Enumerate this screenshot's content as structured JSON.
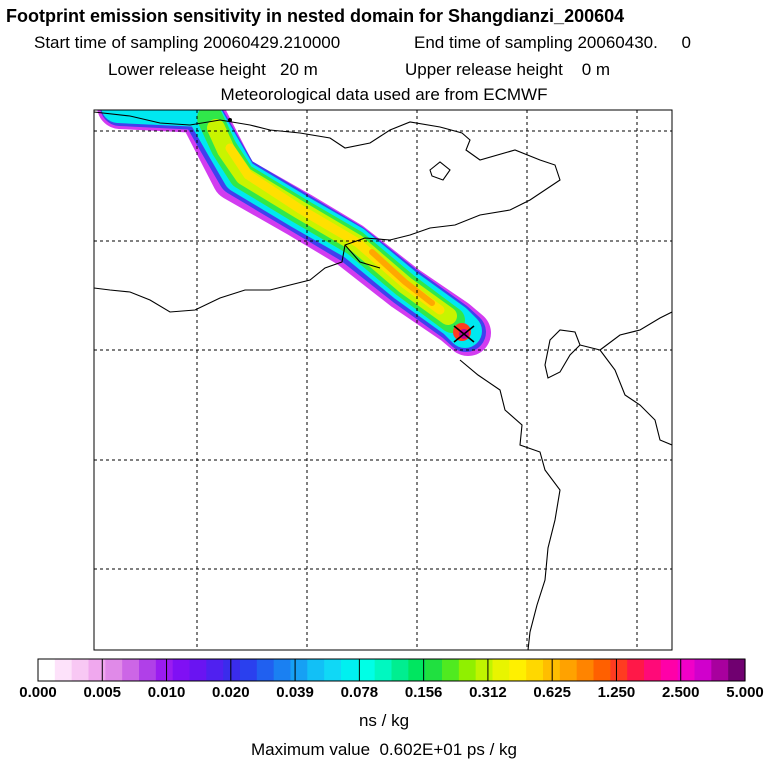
{
  "header": {
    "title": "Footprint emission sensitivity in nested domain for Shangdianzi_200604",
    "start_time": "Start time of sampling 20060429.210000",
    "end_time": "End time of sampling 20060430.     0",
    "lower_release": "Lower release height   20 m",
    "upper_release": "Upper release height    0 m",
    "met_data": "Meteorological data used are from ECMWF"
  },
  "colorbar": {
    "tick_labels": [
      "0.000",
      "0.005",
      "0.010",
      "0.020",
      "0.039",
      "0.078",
      "0.156",
      "0.312",
      "0.625",
      "1.250",
      "2.500",
      "5.000"
    ],
    "units": "ns / kg",
    "segments": [
      "#ffffff",
      "#fde2fa",
      "#f8c8f4",
      "#f0a8ee",
      "#e08ae8",
      "#cc66e6",
      "#b040e8",
      "#9a1cf0",
      "#8010f4",
      "#6a14f2",
      "#5020f0",
      "#3a2cec",
      "#2a40ee",
      "#2060f0",
      "#1a80f2",
      "#16a0f4",
      "#12c0f6",
      "#10d8f6",
      "#00f0f0",
      "#00ffe6",
      "#00f8c0",
      "#00ee90",
      "#00e660",
      "#20e040",
      "#50ea20",
      "#90f000",
      "#c0f400",
      "#e8f400",
      "#fff000",
      "#ffd800",
      "#ffbe00",
      "#ffa200",
      "#ff8400",
      "#ff6000",
      "#ff3c20",
      "#ff1848",
      "#ff0a78",
      "#ff00a8",
      "#f000c8",
      "#d000cc",
      "#a8009e",
      "#700070"
    ]
  },
  "summary": {
    "max_value": "Maximum value  0.602E+01 ps / kg"
  }
}
